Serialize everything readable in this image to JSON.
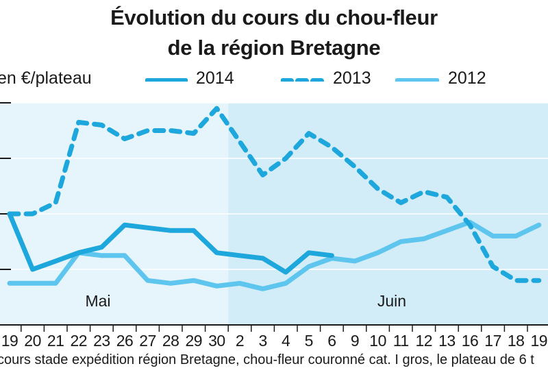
{
  "chart_data": {
    "type": "line",
    "title_lines": [
      "Évolution du cours du chou-fleur",
      "de la région Bretagne"
    ],
    "ylabel": "en €/plateau",
    "footnote": "cours stade expédition région Bretagne, chou-fleur couronné cat. I gros,  le plateau de 6 t",
    "categories": [
      "19",
      "20",
      "21",
      "22",
      "23",
      "26",
      "27",
      "28",
      "29",
      "30",
      "2",
      "3",
      "4",
      "5",
      "6",
      "9",
      "10",
      "11",
      "12",
      "13",
      "16",
      "17",
      "18",
      "19"
    ],
    "month_labels": [
      {
        "label": "Mai",
        "start_index": 0,
        "end_index": 9
      },
      {
        "label": "Juin",
        "start_index": 10,
        "end_index": 23
      }
    ],
    "ylim": [
      0,
      4
    ],
    "y_gridline_values": [
      1,
      2,
      3,
      4
    ],
    "series": [
      {
        "name": "2014",
        "style": "solid",
        "color": "#1ea7dc",
        "values": [
          2.0,
          1.0,
          1.15,
          1.3,
          1.4,
          1.8,
          1.75,
          1.7,
          1.7,
          1.3,
          1.25,
          1.2,
          0.95,
          1.3,
          1.25,
          null,
          null,
          null,
          null,
          null,
          null,
          null,
          null,
          null
        ]
      },
      {
        "name": "2013",
        "style": "dashed",
        "color": "#1ea7dc",
        "values": [
          2.0,
          2.0,
          2.2,
          3.65,
          3.6,
          3.35,
          3.5,
          3.5,
          3.45,
          3.9,
          3.3,
          2.7,
          3.0,
          3.45,
          3.2,
          2.85,
          2.45,
          2.2,
          2.4,
          2.3,
          1.8,
          1.05,
          0.8,
          0.8
        ]
      },
      {
        "name": "2012",
        "style": "solid",
        "color": "#5ec6ee",
        "values": [
          0.75,
          0.75,
          0.75,
          1.3,
          1.25,
          1.25,
          0.8,
          0.75,
          0.8,
          0.7,
          0.75,
          0.65,
          0.75,
          1.05,
          1.2,
          1.15,
          1.3,
          1.5,
          1.55,
          1.7,
          1.85,
          1.6,
          1.6,
          1.8
        ]
      }
    ],
    "colors": {
      "band_mai": "#e6f4fb",
      "band_juin": "#d2ecf8",
      "gridline": "#ffffff",
      "tick": "#1a1a1a"
    }
  }
}
